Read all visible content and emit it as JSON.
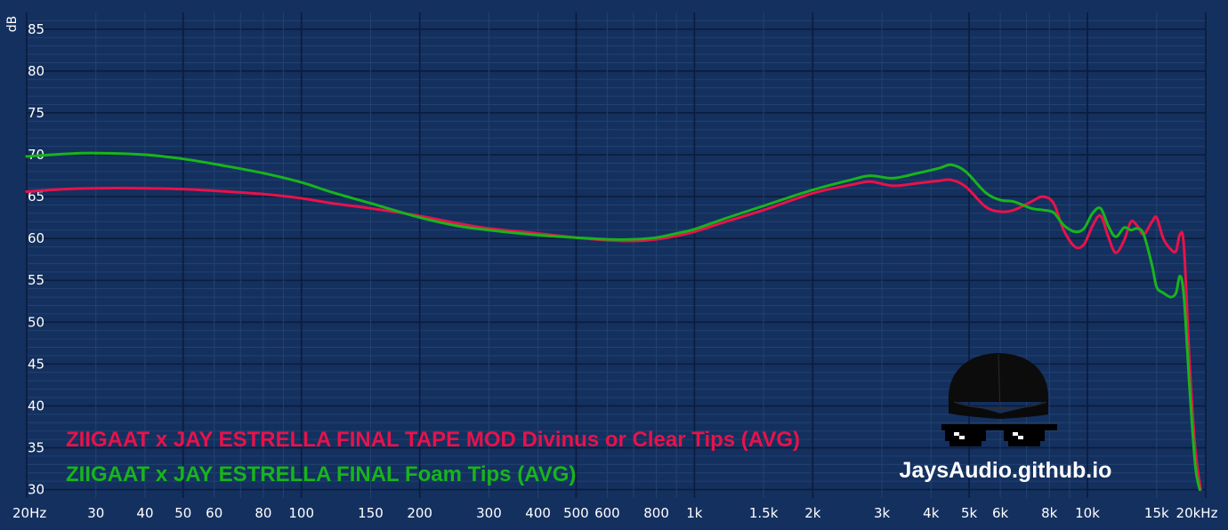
{
  "colors": {
    "background": "#14305f",
    "grid_major": "#0b1c3c",
    "grid_minor": "#21426f",
    "text": "#ffffff",
    "series_red": "#e8124a",
    "series_green": "#18b41c"
  },
  "watermark": {
    "text": "JaysAudio.github.io",
    "icons": [
      "cap-icon",
      "pixel-sunglasses-icon"
    ]
  },
  "chart_data": {
    "type": "line",
    "title": "",
    "xlabel": "",
    "ylabel": "dB",
    "x_scale": "log",
    "xlim": [
      20,
      20000
    ],
    "ylim": [
      29,
      87
    ],
    "grid": true,
    "legend_placement": "bottom-left",
    "y_ticks": [
      {
        "value": 30,
        "label": "30"
      },
      {
        "value": 35,
        "label": "35"
      },
      {
        "value": 40,
        "label": "40"
      },
      {
        "value": 45,
        "label": "45"
      },
      {
        "value": 50,
        "label": "50"
      },
      {
        "value": 55,
        "label": "55"
      },
      {
        "value": 60,
        "label": "60"
      },
      {
        "value": 65,
        "label": "65"
      },
      {
        "value": 70,
        "label": "70"
      },
      {
        "value": 75,
        "label": "75"
      },
      {
        "value": 80,
        "label": "80"
      },
      {
        "value": 85,
        "label": "85"
      }
    ],
    "x_ticks": [
      {
        "value": 20,
        "label": "20Hz"
      },
      {
        "value": 30,
        "label": "30"
      },
      {
        "value": 40,
        "label": "40"
      },
      {
        "value": 50,
        "label": "50"
      },
      {
        "value": 60,
        "label": "60"
      },
      {
        "value": 80,
        "label": "80"
      },
      {
        "value": 100,
        "label": "100"
      },
      {
        "value": 150,
        "label": "150"
      },
      {
        "value": 200,
        "label": "200"
      },
      {
        "value": 300,
        "label": "300"
      },
      {
        "value": 400,
        "label": "400"
      },
      {
        "value": 500,
        "label": "500"
      },
      {
        "value": 600,
        "label": "600"
      },
      {
        "value": 800,
        "label": "800"
      },
      {
        "value": 1000,
        "label": "1k"
      },
      {
        "value": 1500,
        "label": "1.5k"
      },
      {
        "value": 2000,
        "label": "2k"
      },
      {
        "value": 3000,
        "label": "3k"
      },
      {
        "value": 4000,
        "label": "4k"
      },
      {
        "value": 5000,
        "label": "5k"
      },
      {
        "value": 6000,
        "label": "6k"
      },
      {
        "value": 8000,
        "label": "8k"
      },
      {
        "value": 10000,
        "label": "10k"
      },
      {
        "value": 15000,
        "label": "15k"
      },
      {
        "value": 20000,
        "label": "20kHz"
      }
    ],
    "series": [
      {
        "name": "ZIIGAAT x JAY ESTRELLA FINAL TAPE MOD Divinus or Clear Tips (AVG)",
        "color": "#e8124a",
        "points": [
          [
            20,
            65.6
          ],
          [
            25,
            65.9
          ],
          [
            30,
            66.0
          ],
          [
            40,
            66.0
          ],
          [
            50,
            65.9
          ],
          [
            60,
            65.7
          ],
          [
            80,
            65.3
          ],
          [
            100,
            64.8
          ],
          [
            120,
            64.2
          ],
          [
            150,
            63.6
          ],
          [
            200,
            62.7
          ],
          [
            250,
            61.8
          ],
          [
            300,
            61.2
          ],
          [
            400,
            60.6
          ],
          [
            500,
            60.1
          ],
          [
            600,
            59.8
          ],
          [
            700,
            59.7
          ],
          [
            800,
            59.9
          ],
          [
            900,
            60.3
          ],
          [
            1000,
            60.8
          ],
          [
            1200,
            62.0
          ],
          [
            1500,
            63.4
          ],
          [
            2000,
            65.4
          ],
          [
            2500,
            66.4
          ],
          [
            2800,
            66.8
          ],
          [
            3200,
            66.3
          ],
          [
            3700,
            66.6
          ],
          [
            4200,
            66.9
          ],
          [
            4500,
            67.0
          ],
          [
            4900,
            66.2
          ],
          [
            5500,
            63.8
          ],
          [
            6000,
            63.2
          ],
          [
            6500,
            63.4
          ],
          [
            7200,
            64.4
          ],
          [
            7700,
            65.0
          ],
          [
            8200,
            64.2
          ],
          [
            8700,
            61.0
          ],
          [
            9300,
            59.0
          ],
          [
            9800,
            59.3
          ],
          [
            10300,
            61.5
          ],
          [
            10800,
            62.7
          ],
          [
            11300,
            60.2
          ],
          [
            11800,
            58.3
          ],
          [
            12400,
            59.8
          ],
          [
            12900,
            62.0
          ],
          [
            13400,
            61.5
          ],
          [
            13900,
            60.5
          ],
          [
            14600,
            62.0
          ],
          [
            15000,
            62.5
          ],
          [
            15600,
            60.0
          ],
          [
            16300,
            58.7
          ],
          [
            16800,
            58.5
          ],
          [
            17200,
            60.5
          ],
          [
            17600,
            59.0
          ],
          [
            18200,
            45.0
          ],
          [
            18800,
            35.0
          ],
          [
            19400,
            30.0
          ]
        ]
      },
      {
        "name": "ZIIGAAT x JAY ESTRELLA FINAL Foam Tips (AVG)",
        "color": "#18b41c",
        "points": [
          [
            20,
            69.8
          ],
          [
            25,
            70.1
          ],
          [
            30,
            70.2
          ],
          [
            40,
            70.0
          ],
          [
            50,
            69.5
          ],
          [
            60,
            68.9
          ],
          [
            80,
            67.8
          ],
          [
            100,
            66.7
          ],
          [
            120,
            65.5
          ],
          [
            150,
            64.2
          ],
          [
            200,
            62.5
          ],
          [
            250,
            61.5
          ],
          [
            300,
            61.0
          ],
          [
            400,
            60.4
          ],
          [
            500,
            60.1
          ],
          [
            600,
            59.9
          ],
          [
            700,
            59.9
          ],
          [
            800,
            60.1
          ],
          [
            900,
            60.6
          ],
          [
            1000,
            61.1
          ],
          [
            1200,
            62.4
          ],
          [
            1500,
            63.9
          ],
          [
            2000,
            65.8
          ],
          [
            2500,
            67.0
          ],
          [
            2800,
            67.5
          ],
          [
            3200,
            67.2
          ],
          [
            3700,
            67.8
          ],
          [
            4200,
            68.4
          ],
          [
            4500,
            68.8
          ],
          [
            4900,
            68.0
          ],
          [
            5500,
            65.5
          ],
          [
            6000,
            64.6
          ],
          [
            6500,
            64.4
          ],
          [
            7200,
            63.6
          ],
          [
            7700,
            63.4
          ],
          [
            8200,
            63.1
          ],
          [
            8700,
            61.6
          ],
          [
            9300,
            60.8
          ],
          [
            9800,
            61.2
          ],
          [
            10300,
            63.0
          ],
          [
            10800,
            63.6
          ],
          [
            11300,
            61.5
          ],
          [
            11800,
            60.2
          ],
          [
            12400,
            61.3
          ],
          [
            12900,
            61.0
          ],
          [
            13400,
            61.2
          ],
          [
            13900,
            60.5
          ],
          [
            14600,
            56.8
          ],
          [
            15000,
            54.2
          ],
          [
            15600,
            53.5
          ],
          [
            16300,
            53.0
          ],
          [
            16800,
            53.5
          ],
          [
            17200,
            55.5
          ],
          [
            17600,
            53.0
          ],
          [
            18200,
            42.0
          ],
          [
            18800,
            33.0
          ],
          [
            19300,
            30.0
          ]
        ]
      }
    ]
  }
}
